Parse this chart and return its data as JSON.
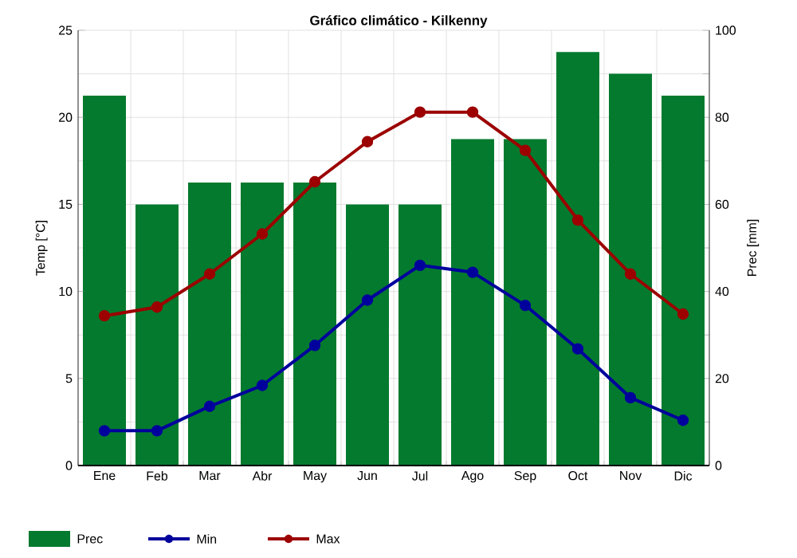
{
  "chart_data": {
    "type": "bar",
    "title": "Gráfico climático - Kilkenny",
    "ylabel": "Temp [°C]",
    "y2label": "Prec [mm]",
    "categories": [
      "Ene",
      "Feb",
      "Mar",
      "Abr",
      "May",
      "Jun",
      "Jul",
      "Ago",
      "Sep",
      "Oct",
      "Nov",
      "Dic"
    ],
    "series": [
      {
        "name": "Prec",
        "axis": "y2",
        "color": "#047a2e",
        "values": [
          85,
          60,
          65,
          65,
          65,
          60,
          60,
          75,
          75,
          95,
          90,
          85
        ]
      },
      {
        "name": "Min",
        "type": "line",
        "color": "#00009c",
        "marker": "circle",
        "values": [
          2.0,
          2.0,
          3.4,
          4.6,
          6.9,
          9.5,
          11.5,
          11.1,
          9.2,
          6.7,
          3.9,
          2.6
        ]
      },
      {
        "name": "Max",
        "type": "line",
        "color": "#9c0000",
        "marker": "circle",
        "values": [
          8.6,
          9.1,
          11.0,
          13.3,
          16.3,
          18.6,
          20.3,
          20.3,
          18.1,
          14.1,
          11.0,
          8.7
        ]
      }
    ],
    "ylim": [
      0,
      25
    ],
    "yticks": [
      0,
      5,
      10,
      15,
      20,
      25
    ],
    "y2lim": [
      0,
      100
    ],
    "y2ticks": [
      0,
      {
        "value": 10,
        "label": null
      },
      20,
      {
        "value": 30,
        "label": null
      },
      40,
      {
        "value": 50,
        "label": null
      },
      60,
      {
        "value": 70,
        "label": null
      },
      80,
      {
        "value": 90,
        "label": null
      },
      100
    ],
    "grid": true,
    "legend": "bottom"
  }
}
